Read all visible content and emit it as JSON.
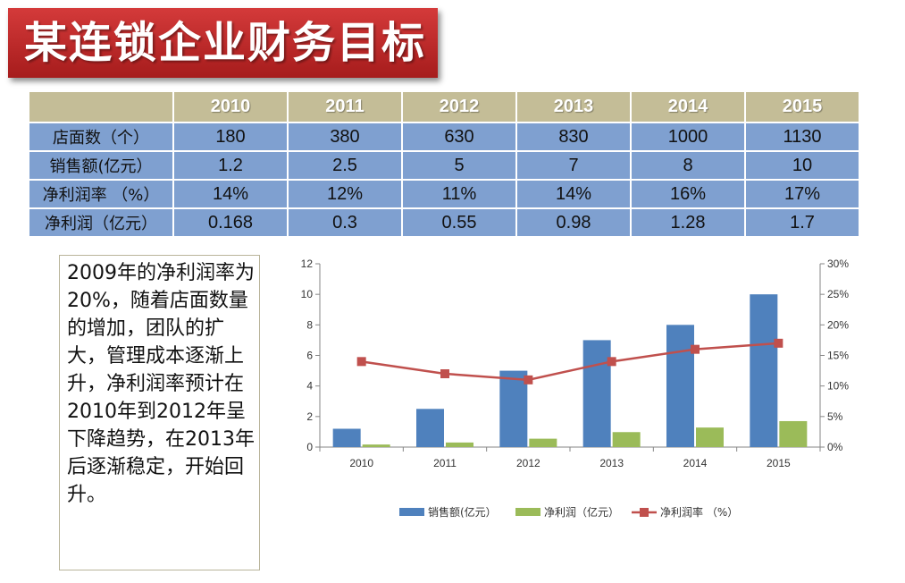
{
  "title": "某连锁企业财务目标",
  "table": {
    "corner": "",
    "headers": [
      "2010",
      "2011",
      "2012",
      "2013",
      "2014",
      "2015"
    ],
    "rows": [
      {
        "label": "店面数（个）",
        "values": [
          "180",
          "380",
          "630",
          "830",
          "1000",
          "1130"
        ]
      },
      {
        "label": "销售额(亿元）",
        "values": [
          "1.2",
          "2.5",
          "5",
          "7",
          "8",
          "10"
        ]
      },
      {
        "label": "净利润率 （%）",
        "values": [
          "14%",
          "12%",
          "11%",
          "14%",
          "16%",
          "17%"
        ]
      },
      {
        "label": "净利润（亿元）",
        "values": [
          "0.168",
          "0.3",
          "0.55",
          "0.98",
          "1.28",
          "1.7"
        ]
      }
    ]
  },
  "note": "2009年的净利润率为20%，随着店面数量的增加，团队的扩大，管理成本逐渐上升，净利润率预计在2010年到2012年呈下降趋势，在2013年后逐渐稳定，开始回升。",
  "colors": {
    "banner": "#b82525",
    "table_header": "#c4bd97",
    "table_cell": "#7fa0d0",
    "sales": "#4f81bd",
    "profit": "#9bbb59",
    "margin": "#c0504d"
  },
  "chart_data": {
    "type": "bar",
    "categories": [
      "2010",
      "2011",
      "2012",
      "2013",
      "2014",
      "2015"
    ],
    "series": [
      {
        "name": "销售额(亿元）",
        "kind": "bar",
        "axis": "left",
        "values": [
          1.2,
          2.5,
          5,
          7,
          8,
          10
        ]
      },
      {
        "name": "净利润（亿元）",
        "kind": "bar",
        "axis": "left",
        "values": [
          0.168,
          0.3,
          0.55,
          0.98,
          1.28,
          1.7
        ]
      },
      {
        "name": "净利润率 （%）",
        "kind": "line",
        "axis": "right",
        "values": [
          14,
          12,
          11,
          14,
          16,
          17
        ]
      }
    ],
    "left_axis": {
      "min": 0,
      "max": 12,
      "step": 2,
      "ticks": [
        "0",
        "2",
        "4",
        "6",
        "8",
        "10",
        "12"
      ]
    },
    "right_axis": {
      "min": 0,
      "max": 30,
      "step": 5,
      "ticks": [
        "0%",
        "5%",
        "10%",
        "15%",
        "20%",
        "25%",
        "30%"
      ]
    },
    "grid": false,
    "legend": "bottom"
  }
}
